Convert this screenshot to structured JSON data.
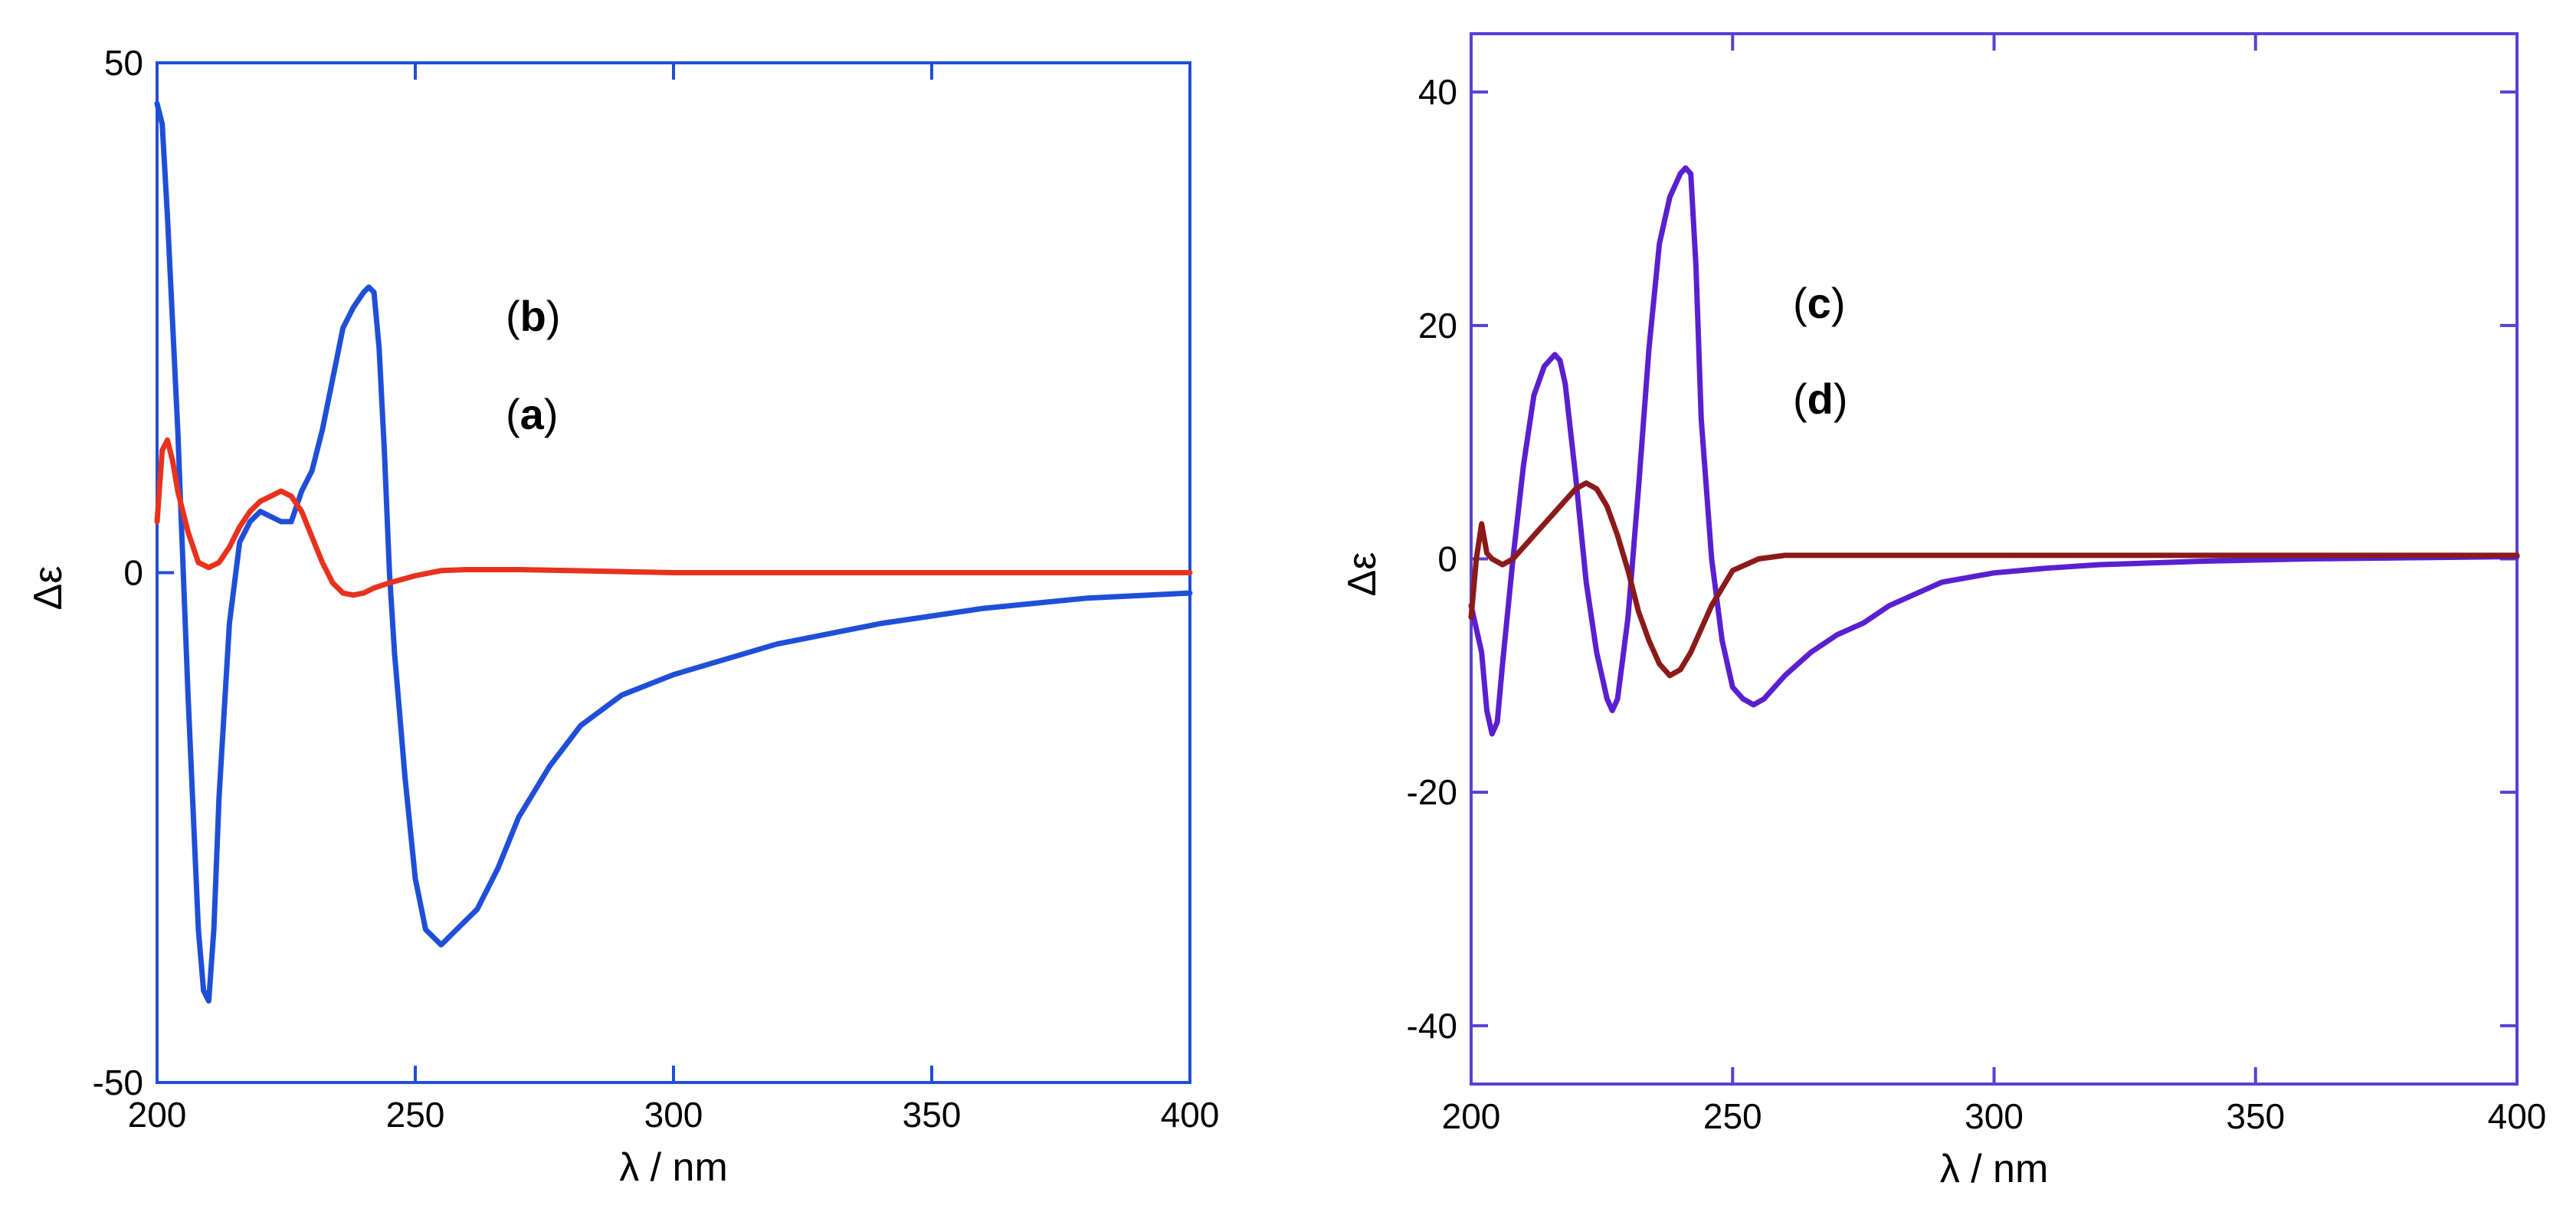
{
  "chart_data": [
    {
      "type": "line",
      "title": "",
      "xlabel": "λ / nm",
      "ylabel": "Δε",
      "xlim": [
        200,
        400
      ],
      "ylim": [
        -50,
        50
      ],
      "xticks": [
        200,
        250,
        300,
        350,
        400
      ],
      "yticks": [
        -50,
        0,
        50
      ],
      "frame_color": "#1f4fd8",
      "annotations": [
        {
          "open": "(",
          "letter": "b",
          "close": ")"
        },
        {
          "open": "(",
          "letter": "a",
          "close": ")"
        }
      ],
      "series": [
        {
          "color": "#1f4fd8",
          "x": [
            200,
            201,
            202,
            204,
            206,
            208,
            209,
            210,
            211,
            212,
            214,
            216,
            217,
            218,
            220,
            222,
            224,
            226,
            228,
            230,
            232,
            234,
            236,
            238,
            240,
            241,
            242,
            243,
            244,
            245,
            246,
            247,
            248,
            250,
            252,
            254,
            255,
            256,
            258,
            262,
            266,
            270,
            276,
            282,
            290,
            300,
            320,
            340,
            360,
            380,
            400
          ],
          "y": [
            46,
            44,
            35,
            14,
            -12,
            -35,
            -41,
            -42,
            -35,
            -22,
            -5,
            3,
            4,
            5,
            6,
            5.5,
            5,
            5,
            8,
            10,
            14,
            19,
            24,
            26,
            27.5,
            28,
            27.5,
            22,
            12,
            0,
            -8,
            -14,
            -20,
            -30,
            -35,
            -36,
            -36.5,
            -36,
            -35,
            -33,
            -29,
            -24,
            -19,
            -15,
            -12,
            -10,
            -7,
            -5,
            -3.5,
            -2.5,
            -2
          ]
        },
        {
          "color": "#e8321e",
          "x": [
            200,
            201,
            202,
            203,
            204,
            206,
            208,
            210,
            212,
            214,
            216,
            218,
            220,
            222,
            224,
            226,
            228,
            230,
            232,
            234,
            236,
            238,
            240,
            242,
            245,
            250,
            255,
            260,
            270,
            280,
            300,
            320,
            350,
            400
          ],
          "y": [
            5,
            12,
            13,
            11,
            8,
            4,
            1,
            0.5,
            1,
            2.5,
            4.5,
            6,
            7,
            7.5,
            8,
            7.5,
            6,
            3.5,
            1,
            -1,
            -2,
            -2.2,
            -2,
            -1.5,
            -1,
            -0.3,
            0.2,
            0.3,
            0.3,
            0.2,
            0,
            0,
            0,
            0
          ]
        }
      ]
    },
    {
      "type": "line",
      "title": "",
      "xlabel": "λ / nm",
      "ylabel": "Δε",
      "xlim": [
        200,
        400
      ],
      "ylim": [
        -45,
        45
      ],
      "xticks": [
        200,
        250,
        300,
        350,
        400
      ],
      "yticks": [
        -40,
        -20,
        0,
        20,
        40
      ],
      "frame_color": "#5b3fd6",
      "annotations": [
        {
          "open": "(",
          "letter": "c",
          "close": ")"
        },
        {
          "open": "(",
          "letter": "d",
          "close": ")"
        }
      ],
      "series": [
        {
          "color": "#5a1fd0",
          "x": [
            200,
            202,
            203,
            204,
            205,
            206,
            208,
            210,
            212,
            214,
            216,
            217,
            218,
            220,
            222,
            224,
            226,
            227,
            228,
            230,
            232,
            234,
            236,
            238,
            240,
            241,
            242,
            243,
            244,
            246,
            248,
            250,
            252,
            254,
            256,
            260,
            265,
            270,
            275,
            280,
            285,
            290,
            300,
            310,
            320,
            340,
            360,
            380,
            400
          ],
          "y": [
            -4,
            -8,
            -13,
            -15,
            -14,
            -9,
            0,
            8,
            14,
            16.5,
            17.5,
            17,
            15,
            7,
            -2,
            -8,
            -12,
            -13,
            -12,
            -5,
            6,
            18,
            27,
            31,
            33,
            33.5,
            33,
            25,
            12,
            0,
            -7,
            -11,
            -12,
            -12.5,
            -12,
            -10,
            -8,
            -6.5,
            -5.5,
            -4,
            -3,
            -2,
            -1.2,
            -0.8,
            -0.5,
            -0.2,
            0,
            0.1,
            0.2
          ]
        },
        {
          "color": "#8b1a1a",
          "x": [
            200,
            201,
            202,
            203,
            204,
            206,
            208,
            210,
            212,
            214,
            216,
            218,
            220,
            222,
            224,
            226,
            228,
            230,
            232,
            234,
            236,
            238,
            240,
            242,
            244,
            246,
            248,
            250,
            255,
            260,
            270,
            280,
            300,
            320,
            340,
            360,
            400
          ],
          "y": [
            -5,
            0,
            3,
            0.5,
            0,
            -0.5,
            0,
            1,
            2,
            3,
            4,
            5,
            6,
            6.5,
            6,
            4.5,
            2,
            -1,
            -4.5,
            -7,
            -9,
            -10,
            -9.5,
            -8,
            -6,
            -4,
            -2.5,
            -1,
            0,
            0.3,
            0.3,
            0.3,
            0.3,
            0.3,
            0.3,
            0.3,
            0.3
          ]
        }
      ]
    }
  ]
}
